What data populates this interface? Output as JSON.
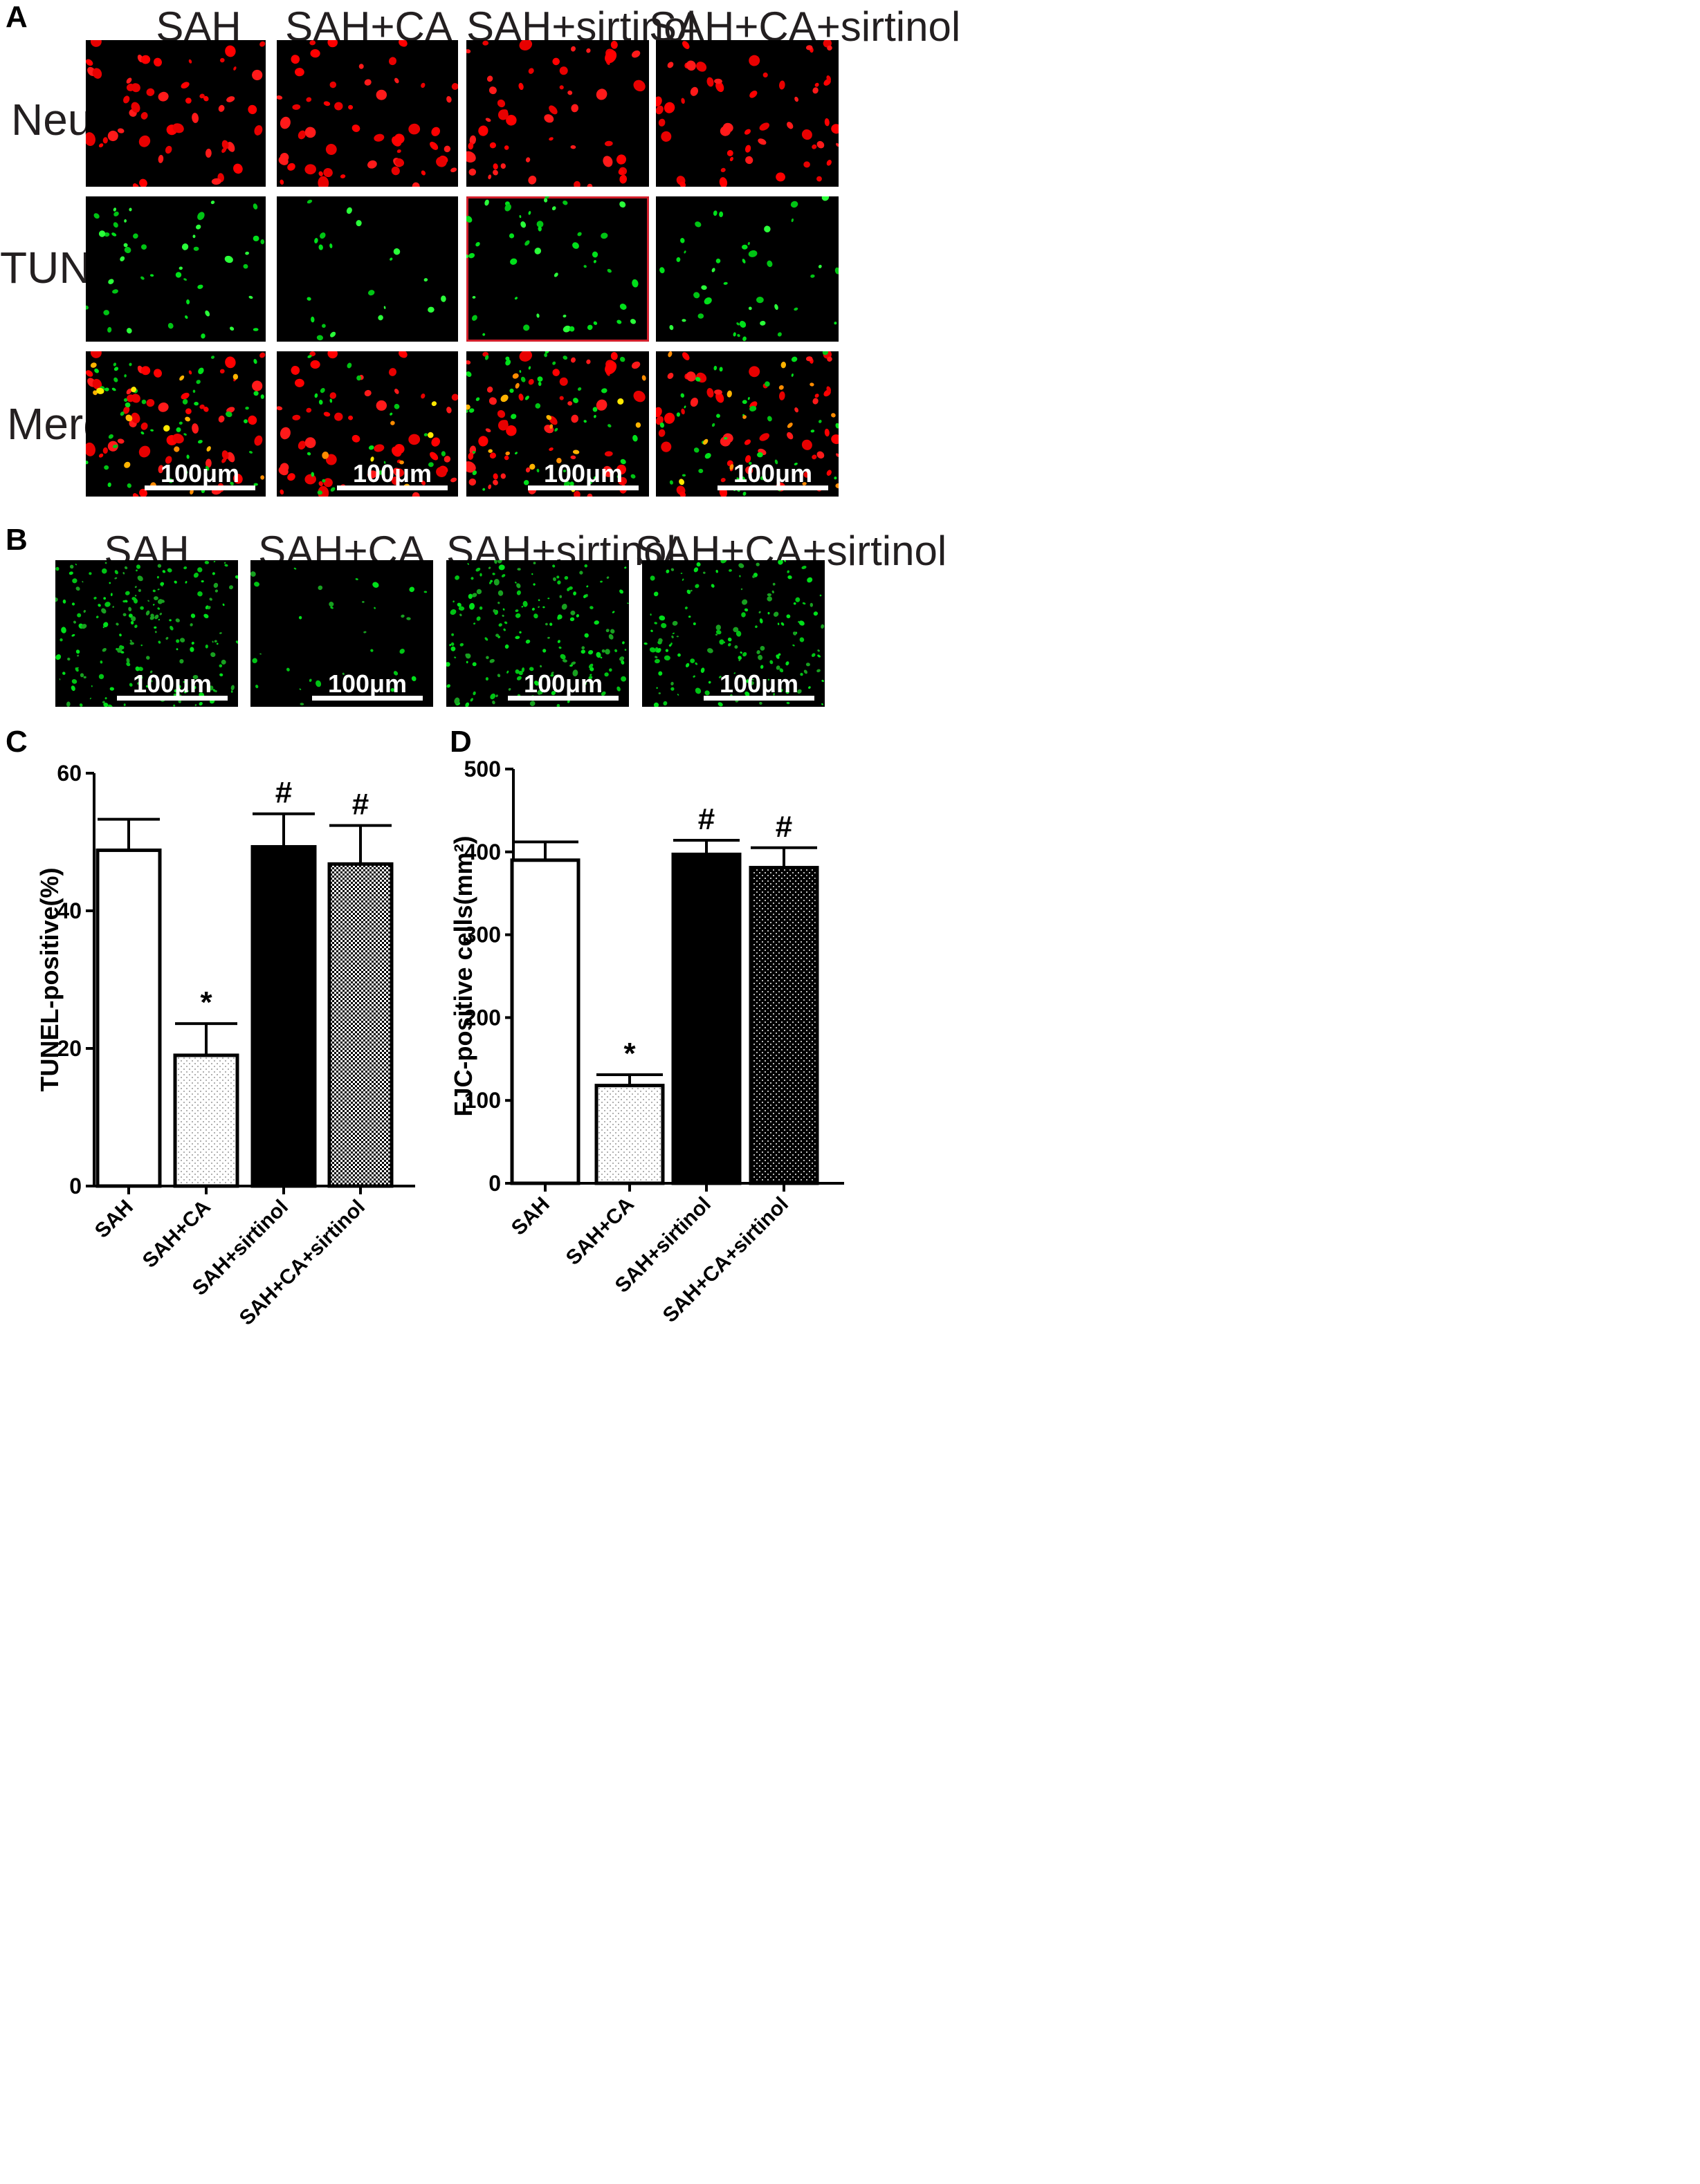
{
  "panels": {
    "a": "A",
    "b": "B",
    "c": "C",
    "d": "D"
  },
  "groups": [
    "SAH",
    "SAH+CA",
    "SAH+sirtinol",
    "SAH+CA+sirtinol"
  ],
  "rows": [
    "NeuN",
    "TUNEL",
    "Merge"
  ],
  "scale_label": "100μm",
  "colors": {
    "neun": "#ff0000",
    "tunel": "#00e01a",
    "merge": "#ffe800",
    "frame": "#d21f2b",
    "background": "#000000"
  },
  "chart_data": [
    {
      "type": "bar",
      "panel": "C",
      "categories": [
        "SAH",
        "SAH+CA",
        "SAH+sirtinol",
        "SAH+CA+sirtinol"
      ],
      "values": [
        48.8,
        19.0,
        49.3,
        46.8
      ],
      "errors": [
        4.5,
        4.6,
        4.8,
        5.6
      ],
      "annotations": [
        "",
        "*",
        "#",
        "#"
      ],
      "patterns": [
        "white",
        "sparse-dots",
        "solid-black",
        "checker"
      ],
      "ylabel": "TUNEL-positive(%)",
      "ylim": [
        0,
        60
      ],
      "yticks": [
        0,
        20,
        40,
        60
      ],
      "grid": false
    },
    {
      "type": "bar",
      "panel": "D",
      "categories": [
        "SAH",
        "SAH+CA",
        "SAH+sirtinol",
        "SAH+CA+sirtinol"
      ],
      "values": [
        390,
        118,
        397,
        381
      ],
      "errors": [
        22,
        13,
        17,
        24
      ],
      "annotations": [
        "",
        "*",
        "#",
        "#"
      ],
      "patterns": [
        "white",
        "sparse-dots",
        "solid-black",
        "black-white-dots"
      ],
      "ylabel": "FJC-positive cells(mm²)",
      "ylim": [
        0,
        500
      ],
      "yticks": [
        0,
        100,
        200,
        300,
        400,
        500
      ],
      "grid": false
    }
  ]
}
